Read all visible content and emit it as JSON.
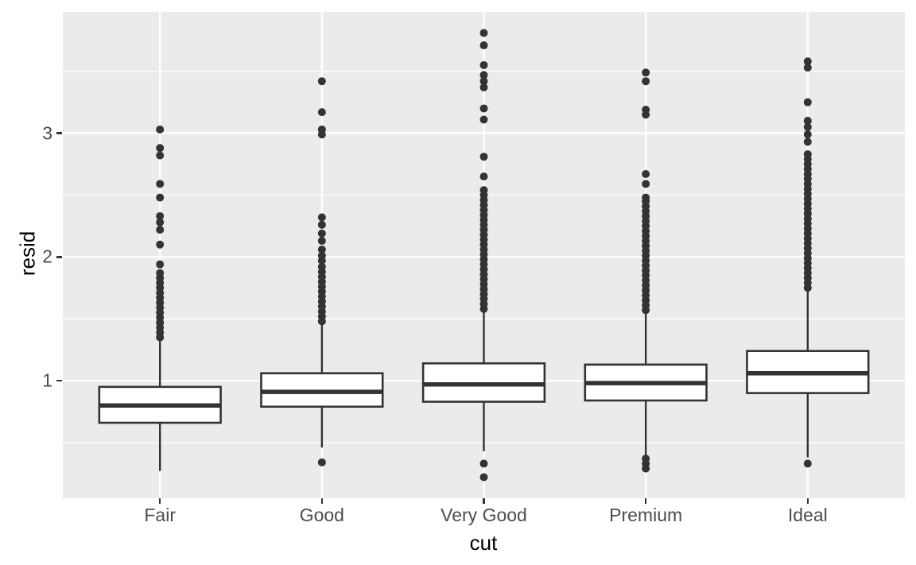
{
  "chart_data": {
    "type": "boxplot",
    "title": "",
    "xlabel": "cut",
    "ylabel": "resid",
    "categories": [
      "Fair",
      "Good",
      "Very Good",
      "Premium",
      "Ideal"
    ],
    "y_ticks": [
      1,
      2,
      3
    ],
    "y_tick_labels": [
      "1",
      "2",
      "3"
    ],
    "y_minor_gridlines": [
      0.5,
      1.5,
      2.5,
      3.5
    ],
    "ylim": [
      0.05,
      3.98
    ],
    "grid": "on",
    "legend": "none",
    "series": [
      {
        "category": "Fair",
        "lower_whisker": 0.27,
        "q1": 0.66,
        "median": 0.8,
        "q3": 0.95,
        "upper_whisker": 1.33,
        "outliers_low": [],
        "outliers_high": [
          1.35,
          1.39,
          1.43,
          1.47,
          1.51,
          1.55,
          1.59,
          1.63,
          1.67,
          1.71,
          1.75,
          1.79,
          1.83,
          1.87,
          1.94,
          2.1,
          2.22,
          2.28,
          2.33,
          2.48,
          2.59,
          2.82,
          2.88,
          3.03
        ]
      },
      {
        "category": "Good",
        "lower_whisker": 0.46,
        "q1": 0.79,
        "median": 0.91,
        "q3": 1.06,
        "upper_whisker": 1.48,
        "outliers_low": [
          0.34
        ],
        "outliers_high": [
          1.48,
          1.52,
          1.56,
          1.6,
          1.64,
          1.68,
          1.72,
          1.76,
          1.8,
          1.84,
          1.88,
          1.92,
          1.97,
          2.01,
          2.06,
          2.13,
          2.19,
          2.26,
          2.32,
          2.99,
          3.03,
          3.17,
          3.42
        ]
      },
      {
        "category": "Very Good",
        "lower_whisker": 0.43,
        "q1": 0.83,
        "median": 0.97,
        "q3": 1.14,
        "upper_whisker": 1.58,
        "outliers_low": [
          0.33,
          0.22
        ],
        "outliers_high": [
          1.58,
          1.62,
          1.66,
          1.7,
          1.74,
          1.78,
          1.82,
          1.86,
          1.9,
          1.94,
          1.98,
          2.02,
          2.06,
          2.1,
          2.14,
          2.18,
          2.22,
          2.26,
          2.3,
          2.34,
          2.38,
          2.42,
          2.46,
          2.5,
          2.54,
          2.65,
          2.81,
          3.11,
          3.2,
          3.37,
          3.42,
          3.47,
          3.55,
          3.71,
          3.81
        ]
      },
      {
        "category": "Premium",
        "lower_whisker": 0.4,
        "q1": 0.84,
        "median": 0.98,
        "q3": 1.13,
        "upper_whisker": 1.57,
        "outliers_low": [
          0.37,
          0.33,
          0.29
        ],
        "outliers_high": [
          1.57,
          1.61,
          1.65,
          1.69,
          1.73,
          1.77,
          1.81,
          1.85,
          1.89,
          1.93,
          1.97,
          2.01,
          2.05,
          2.09,
          2.13,
          2.17,
          2.21,
          2.25,
          2.29,
          2.33,
          2.37,
          2.41,
          2.45,
          2.48,
          2.59,
          2.67,
          3.15,
          3.19,
          3.42,
          3.49
        ]
      },
      {
        "category": "Ideal",
        "lower_whisker": 0.38,
        "q1": 0.9,
        "median": 1.06,
        "q3": 1.24,
        "upper_whisker": 1.75,
        "outliers_low": [
          0.33
        ],
        "outliers_high": [
          1.75,
          1.79,
          1.83,
          1.87,
          1.91,
          1.95,
          1.99,
          2.03,
          2.07,
          2.11,
          2.15,
          2.19,
          2.23,
          2.27,
          2.31,
          2.35,
          2.39,
          2.43,
          2.47,
          2.51,
          2.55,
          2.59,
          2.63,
          2.67,
          2.71,
          2.75,
          2.79,
          2.83,
          2.93,
          2.99,
          3.05,
          3.1,
          3.25,
          3.53,
          3.58
        ]
      }
    ],
    "style": {
      "panel_bg": "#EBEBEB",
      "grid_color": "#FFFFFF",
      "box_stroke": "#333333",
      "box_fill": "#FFFFFF",
      "outlier_color": "#333333",
      "axis_text_color": "#4D4D4D",
      "tick_mark_color": "#333333",
      "axis_title_color": "#000000"
    }
  }
}
